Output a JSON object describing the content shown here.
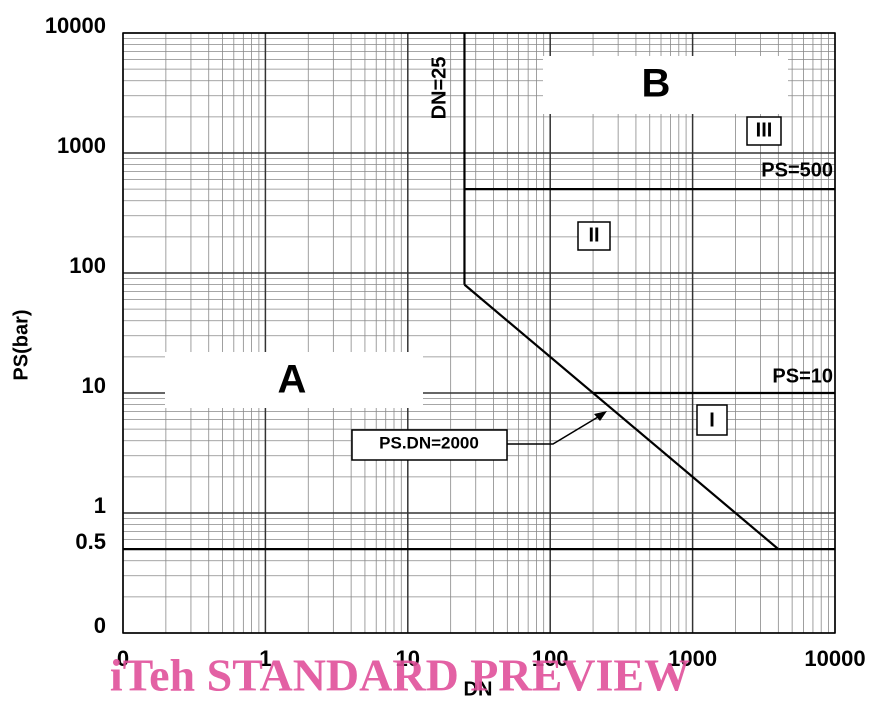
{
  "chart_data": {
    "type": "line",
    "x_label": "DN",
    "y_label": "PS(bar)",
    "xscale": "log",
    "yscale": "log",
    "xlim": [
      0.1,
      10000
    ],
    "ylim": [
      0.1,
      10000
    ],
    "xticks": [
      {
        "value": 0.1,
        "label": "0"
      },
      1,
      10,
      100,
      1000,
      10000
    ],
    "yticks": [
      {
        "value": 0.1,
        "label": "0"
      },
      0.5,
      1,
      10,
      100,
      1000,
      10000
    ],
    "xminor": [
      0.2,
      0.3,
      0.4,
      0.5,
      0.6,
      0.7,
      0.8,
      0.9,
      2,
      3,
      4,
      5,
      6,
      7,
      8,
      9,
      20,
      30,
      40,
      50,
      60,
      70,
      80,
      90,
      200,
      300,
      400,
      500,
      600,
      700,
      800,
      900,
      2000,
      3000,
      4000,
      5000,
      6000,
      7000,
      8000,
      9000
    ],
    "yminor": [
      0.2,
      0.3,
      0.4,
      0.5,
      0.6,
      0.7,
      0.8,
      0.9,
      2,
      3,
      4,
      5,
      6,
      7,
      8,
      9,
      20,
      30,
      40,
      50,
      60,
      70,
      80,
      90,
      200,
      300,
      400,
      500,
      600,
      700,
      800,
      900,
      2000,
      3000,
      4000,
      5000,
      6000,
      7000,
      8000,
      9000
    ],
    "grid": true,
    "series": [
      {
        "color": "#000000",
        "x": [
          25,
          25
        ],
        "values": [
          10000,
          80
        ]
      },
      {
        "color": "#000000",
        "x": [
          25,
          4000
        ],
        "values": [
          80,
          0.5
        ]
      },
      {
        "color": "#000000",
        "x": [
          25,
          10000
        ],
        "values": [
          500,
          500
        ]
      },
      {
        "color": "#000000",
        "x": [
          200,
          10000
        ],
        "values": [
          10,
          10
        ]
      },
      {
        "color": "#000000",
        "x": [
          0.1,
          10000
        ],
        "values": [
          0.5,
          0.5
        ]
      }
    ],
    "annotations": [
      "DN=25",
      "PS=500",
      "PS=10",
      "PS.DN=2000",
      "A",
      "B",
      "I",
      "II",
      "III"
    ],
    "watermark": "iTeh STANDARD PREVIEW"
  }
}
